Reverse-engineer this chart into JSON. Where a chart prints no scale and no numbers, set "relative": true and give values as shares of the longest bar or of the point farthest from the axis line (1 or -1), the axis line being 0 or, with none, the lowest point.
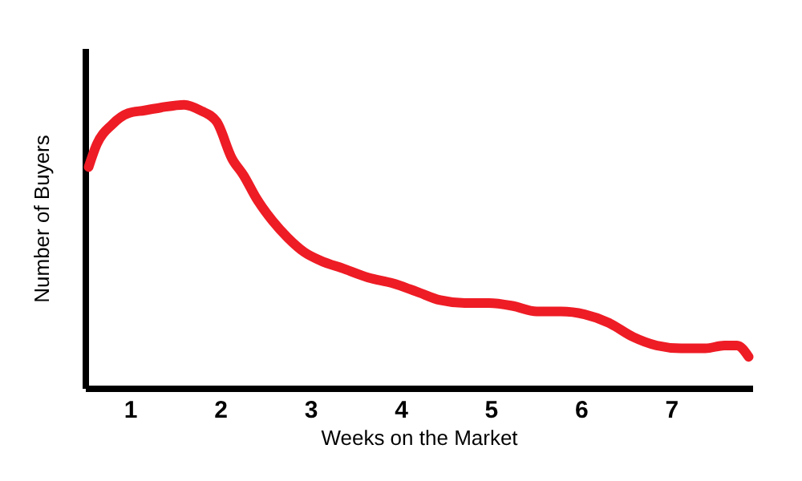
{
  "chart_data": {
    "type": "line",
    "xlabel": "Weeks on the Market",
    "ylabel": "Number of Buyers",
    "relative": true,
    "xlim": [
      0.5,
      7.9
    ],
    "xticks": [
      1,
      2,
      3,
      4,
      5,
      6,
      7
    ],
    "grid": false,
    "marker": "none",
    "line_style": "solid",
    "series": [
      {
        "color": "#ee1c25",
        "x": [
          0.54,
          0.63,
          0.8,
          0.98,
          1.16,
          1.34,
          1.6,
          1.78,
          1.96,
          2.13,
          2.26,
          2.4,
          2.58,
          2.75,
          2.93,
          3.11,
          3.38,
          3.64,
          3.91,
          4.18,
          4.44,
          4.71,
          4.98,
          5.24,
          5.51,
          5.78,
          6.04,
          6.31,
          6.58,
          6.84,
          7.11,
          7.38,
          7.59,
          7.73,
          7.86
        ],
        "values": [
          0.78,
          0.86,
          0.93,
          0.97,
          0.98,
          0.99,
          1,
          0.98,
          0.94,
          0.81,
          0.75,
          0.67,
          0.59,
          0.53,
          0.48,
          0.45,
          0.42,
          0.39,
          0.37,
          0.34,
          0.31,
          0.3,
          0.3,
          0.29,
          0.27,
          0.27,
          0.26,
          0.23,
          0.18,
          0.15,
          0.14,
          0.14,
          0.15,
          0.15,
          0.11
        ]
      }
    ]
  }
}
